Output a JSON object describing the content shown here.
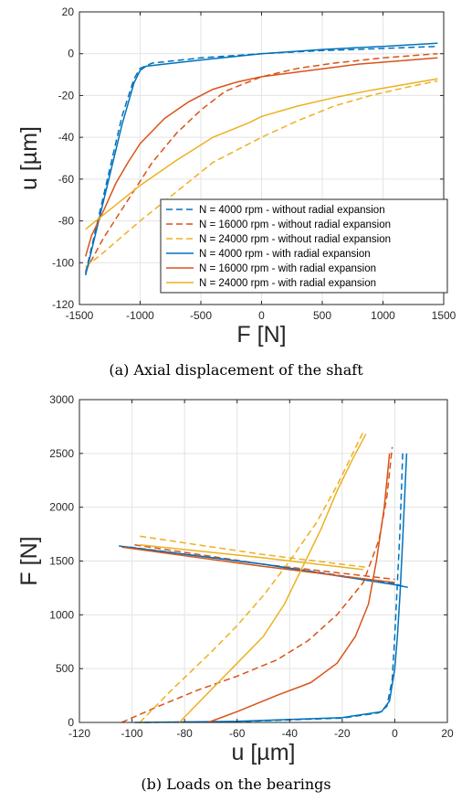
{
  "chart_data": [
    {
      "type": "line",
      "caption": "(a) Axial displacement of the shaft",
      "xlabel": "F [N]",
      "ylabel": "u [µm]",
      "xlim": [
        -1500,
        1500
      ],
      "ylim": [
        -120,
        20
      ],
      "xticks": [
        -1500,
        -1000,
        -500,
        0,
        500,
        1000,
        1500
      ],
      "yticks": [
        -120,
        -100,
        -80,
        -60,
        -40,
        -20,
        0,
        20
      ],
      "grid": true,
      "legend_position": "bottom-right",
      "series": [
        {
          "name": "N = 4000 rpm - without radial expansion",
          "color": "#0072BD",
          "dash": true,
          "points": [
            [
              -1450,
              -105
            ],
            [
              -1350,
              -80
            ],
            [
              -1250,
              -55
            ],
            [
              -1150,
              -30
            ],
            [
              -1050,
              -12
            ],
            [
              -1000,
              -7
            ],
            [
              -900,
              -4.5
            ],
            [
              -500,
              -2
            ],
            [
              0,
              0
            ],
            [
              500,
              1.5
            ],
            [
              1000,
              2.5
            ],
            [
              1450,
              3.5
            ]
          ]
        },
        {
          "name": "N = 16000 rpm - without radial expansion",
          "color": "#D95319",
          "dash": true,
          "points": [
            [
              -1450,
              -104
            ],
            [
              -1300,
              -88
            ],
            [
              -1100,
              -70
            ],
            [
              -900,
              -52
            ],
            [
              -700,
              -38
            ],
            [
              -500,
              -27
            ],
            [
              -300,
              -18
            ],
            [
              0,
              -11
            ],
            [
              300,
              -7
            ],
            [
              600,
              -4.5
            ],
            [
              1000,
              -2
            ],
            [
              1450,
              0
            ]
          ]
        },
        {
          "name": "N = 24000 rpm - without radial expansion",
          "color": "#EDB120",
          "dash": true,
          "points": [
            [
              -1450,
              -102
            ],
            [
              -1300,
              -95
            ],
            [
              -1000,
              -80
            ],
            [
              -700,
              -66
            ],
            [
              -400,
              -52
            ],
            [
              -100,
              -43
            ],
            [
              0,
              -40
            ],
            [
              300,
              -32
            ],
            [
              600,
              -25
            ],
            [
              900,
              -20
            ],
            [
              1200,
              -16
            ],
            [
              1450,
              -13
            ]
          ]
        },
        {
          "name": "N = 4000 rpm - with radial expansion",
          "color": "#0072BD",
          "dash": false,
          "points": [
            [
              -1450,
              -106
            ],
            [
              -1350,
              -82
            ],
            [
              -1250,
              -58
            ],
            [
              -1150,
              -34
            ],
            [
              -1050,
              -14
            ],
            [
              -1000,
              -8
            ],
            [
              -950,
              -6
            ],
            [
              -500,
              -3
            ],
            [
              0,
              0
            ],
            [
              500,
              2
            ],
            [
              1000,
              3.5
            ],
            [
              1450,
              5
            ]
          ]
        },
        {
          "name": "N = 16000 rpm - with radial expansion",
          "color": "#D95319",
          "dash": false,
          "points": [
            [
              -1450,
              -97
            ],
            [
              -1400,
              -87
            ],
            [
              -1300,
              -75
            ],
            [
              -1200,
              -62
            ],
            [
              -1100,
              -52
            ],
            [
              -1000,
              -43
            ],
            [
              -800,
              -31
            ],
            [
              -600,
              -23
            ],
            [
              -400,
              -17
            ],
            [
              -200,
              -13.5
            ],
            [
              0,
              -11
            ],
            [
              400,
              -8
            ],
            [
              800,
              -5
            ],
            [
              1450,
              -2
            ]
          ]
        },
        {
          "name": "N = 24000 rpm - with radial expansion",
          "color": "#EDB120",
          "dash": false,
          "points": [
            [
              -1450,
              -84
            ],
            [
              -1300,
              -77
            ],
            [
              -1000,
              -63
            ],
            [
              -700,
              -51
            ],
            [
              -400,
              -40
            ],
            [
              -100,
              -33
            ],
            [
              0,
              -30
            ],
            [
              300,
              -25
            ],
            [
              600,
              -21
            ],
            [
              900,
              -17.5
            ],
            [
              1200,
              -14.5
            ],
            [
              1450,
              -12
            ]
          ]
        }
      ]
    },
    {
      "type": "line",
      "caption": "(b) Loads on the bearings",
      "xlabel": "u [µm]",
      "ylabel": "F [N]",
      "xlim": [
        -120,
        20
      ],
      "ylim": [
        0,
        3000
      ],
      "xticks": [
        -120,
        -100,
        -80,
        -60,
        -40,
        -20,
        0,
        20
      ],
      "yticks": [
        0,
        500,
        1000,
        1500,
        2000,
        2500,
        3000
      ],
      "grid": true,
      "series": [
        {
          "name": "N = 4000 rpm - without radial expansion",
          "color": "#0072BD",
          "dash": true,
          "curves": [
            [
              [
                -99,
                0
              ],
              [
                -60,
                8
              ],
              [
                -20,
                40
              ],
              [
                -6,
                90
              ],
              [
                -3,
                150
              ],
              [
                -1,
                400
              ],
              [
                0,
                800
              ],
              [
                1,
                1300
              ],
              [
                2,
                1800
              ],
              [
                3,
                2500
              ]
            ],
            [
              [
                -101,
                1630
              ],
              [
                -50,
                1470
              ],
              [
                0,
                1290
              ],
              [
                3,
                1265
              ]
            ]
          ]
        },
        {
          "name": "N = 16000 rpm - without radial expansion",
          "color": "#D95319",
          "dash": true,
          "curves": [
            [
              [
                -104,
                0
              ],
              [
                -90,
                150
              ],
              [
                -75,
                300
              ],
              [
                -60,
                430
              ],
              [
                -45,
                580
              ],
              [
                -33,
                760
              ],
              [
                -22,
                1000
              ],
              [
                -12,
                1300
              ],
              [
                -6,
                1700
              ],
              [
                -3,
                2100
              ],
              [
                -1,
                2560
              ]
            ],
            [
              [
                -99,
                1650
              ],
              [
                -50,
                1470
              ],
              [
                0,
                1330
              ]
            ]
          ]
        },
        {
          "name": "N = 24000 rpm - without radial expansion",
          "color": "#EDB120",
          "dash": true,
          "curves": [
            [
              [
                -97,
                0
              ],
              [
                -85,
                300
              ],
              [
                -70,
                650
              ],
              [
                -60,
                900
              ],
              [
                -50,
                1180
              ],
              [
                -40,
                1500
              ],
              [
                -30,
                1850
              ],
              [
                -22,
                2200
              ],
              [
                -16,
                2500
              ],
              [
                -12,
                2700
              ]
            ],
            [
              [
                -97,
                1730
              ],
              [
                -50,
                1560
              ],
              [
                -10,
                1440
              ]
            ]
          ]
        },
        {
          "name": "N = 4000 rpm - with radial expansion",
          "color": "#0072BD",
          "dash": false,
          "curves": [
            [
              [
                -97,
                0
              ],
              [
                -60,
                10
              ],
              [
                -20,
                45
              ],
              [
                -5,
                100
              ],
              [
                -2,
                200
              ],
              [
                0,
                500
              ],
              [
                1,
                800
              ],
              [
                2,
                1200
              ],
              [
                3,
                1700
              ],
              [
                4.5,
                2500
              ]
            ],
            [
              [
                -105,
                1640
              ],
              [
                -50,
                1470
              ],
              [
                0,
                1280
              ],
              [
                5,
                1255
              ]
            ]
          ]
        },
        {
          "name": "N = 16000 rpm - with radial expansion",
          "color": "#D95319",
          "dash": false,
          "curves": [
            [
              [
                -71,
                0
              ],
              [
                -60,
                100
              ],
              [
                -45,
                250
              ],
              [
                -32,
                370
              ],
              [
                -22,
                550
              ],
              [
                -15,
                800
              ],
              [
                -10,
                1100
              ],
              [
                -7,
                1500
              ],
              [
                -4,
                2000
              ],
              [
                -2,
                2500
              ]
            ],
            [
              [
                -104,
                1630
              ],
              [
                -50,
                1450
              ],
              [
                0,
                1300
              ]
            ]
          ]
        },
        {
          "name": "N = 24000 rpm - with radial expansion",
          "color": "#EDB120",
          "dash": false,
          "curves": [
            [
              [
                -82,
                0
              ],
              [
                -70,
                300
              ],
              [
                -60,
                550
              ],
              [
                -50,
                800
              ],
              [
                -42,
                1100
              ],
              [
                -35,
                1450
              ],
              [
                -28,
                1800
              ],
              [
                -22,
                2150
              ],
              [
                -16,
                2450
              ],
              [
                -11,
                2680
              ]
            ],
            [
              [
                -97,
                1650
              ],
              [
                -50,
                1530
              ],
              [
                -12,
                1420
              ]
            ]
          ]
        }
      ]
    }
  ]
}
